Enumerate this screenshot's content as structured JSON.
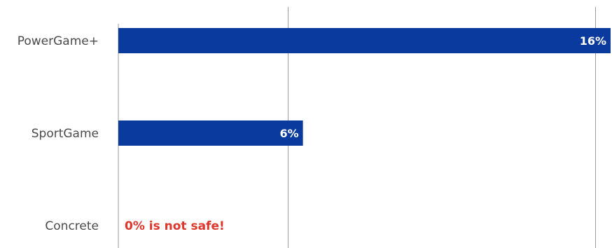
{
  "chart_data": {
    "type": "bar",
    "orientation": "horizontal",
    "categories": [
      "PowerGame+",
      "SportGame",
      "Concrete"
    ],
    "values": [
      16,
      6,
      0
    ],
    "data_labels": [
      "16%",
      "6%",
      ""
    ],
    "xlim": [
      0,
      16
    ],
    "gridlines_at": [
      5.5,
      15.5
    ],
    "grid": true,
    "legend": "none",
    "annotation": "0% is not safe!",
    "colors": {
      "bar": "#0a3a9e",
      "annotation": "#e0352b",
      "gridline": "#9a9a9a",
      "category_text": "#4a4a4a"
    }
  }
}
